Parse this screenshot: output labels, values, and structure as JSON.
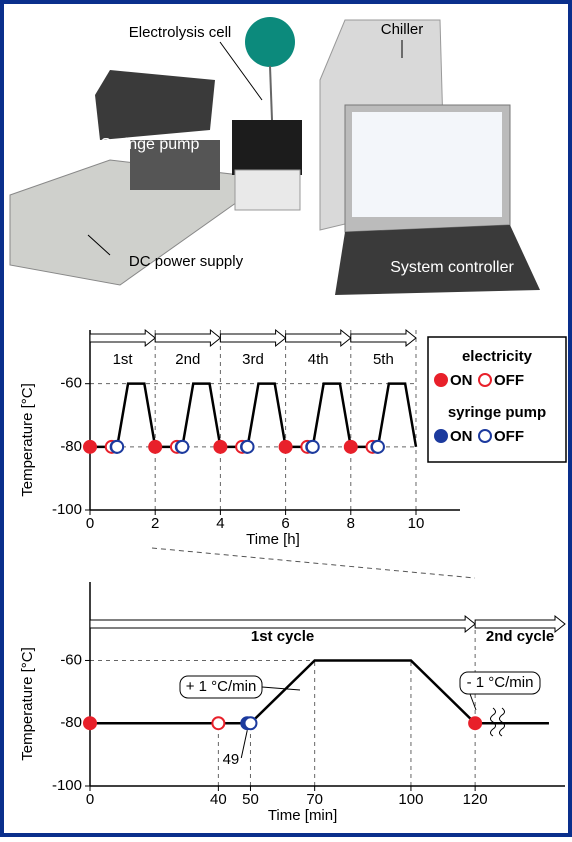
{
  "photo": {
    "labels": [
      "Electrolysis cell",
      "Chiller",
      "Syringe pump",
      "DC power supply",
      "System controller"
    ]
  },
  "chart_data": [
    {
      "type": "line",
      "ylabel": "Temperature [°C]",
      "xlabel": "Time [h]",
      "x": [
        0,
        0.833,
        1.167,
        1.667,
        2,
        2.833,
        3.167,
        3.667,
        4,
        4.833,
        5.167,
        5.667,
        6,
        6.833,
        7.167,
        7.667,
        8,
        8.833,
        9.167,
        9.667,
        10
      ],
      "series": [
        {
          "color": "#000000",
          "values": [
            -80,
            -80,
            -60,
            -60,
            -80,
            -80,
            -60,
            -60,
            -80,
            -80,
            -60,
            -60,
            -80,
            -80,
            -60,
            -60,
            -80,
            -80,
            -60,
            -60,
            -80
          ]
        }
      ],
      "xlim": [
        0,
        11.35
      ],
      "ylim": [
        -100,
        -43
      ],
      "xticks": [
        0,
        2,
        4,
        6,
        8,
        10
      ],
      "yticks": [
        -100,
        -80,
        -60
      ],
      "grid": true,
      "cycles": [
        {
          "label": "1st",
          "x": [
            0,
            2
          ]
        },
        {
          "label": "2nd",
          "x": [
            2,
            4
          ]
        },
        {
          "label": "3rd",
          "x": [
            4,
            6
          ]
        },
        {
          "label": "4th",
          "x": [
            6,
            8
          ]
        },
        {
          "label": "5th",
          "x": [
            8,
            10
          ]
        }
      ],
      "markers": [
        {
          "color": "#e8202a",
          "filled": true,
          "x": [
            0,
            2,
            4,
            6,
            8
          ],
          "values": [
            -80,
            -80,
            -80,
            -80,
            -80
          ]
        },
        {
          "color": "#e8202a",
          "filled": false,
          "x": [
            0.667,
            2.667,
            4.667,
            6.667,
            8.667
          ],
          "values": [
            -80,
            -80,
            -80,
            -80,
            -80
          ]
        },
        {
          "color": "#1c3a9e",
          "filled": true,
          "x": [
            0.817,
            2.817,
            4.817,
            6.817,
            8.817
          ],
          "values": [
            -80,
            -80,
            -80,
            -80,
            -80
          ]
        },
        {
          "color": "#1c3a9e",
          "filled": false,
          "x": [
            0.833,
            2.833,
            4.833,
            6.833,
            8.833
          ],
          "values": [
            -80,
            -80,
            -80,
            -80,
            -80
          ]
        }
      ],
      "legend": [
        {
          "title": "electricity",
          "items": [
            "ON",
            "OFF"
          ]
        },
        {
          "title": "syringe pump",
          "items": [
            "ON",
            "OFF"
          ]
        }
      ]
    },
    {
      "type": "line",
      "ylabel": "Temperature [°C]",
      "xlabel": "Time [min]",
      "x": [
        0,
        50,
        70,
        100,
        120,
        143
      ],
      "series": [
        {
          "color": "#000000",
          "values": [
            -80,
            -80,
            -60,
            -60,
            -80,
            -80
          ]
        }
      ],
      "xlim": [
        0,
        148
      ],
      "ylim": [
        -100,
        -35
      ],
      "xticks": [
        0,
        40,
        50,
        70,
        100,
        120
      ],
      "yticks": [
        -100,
        -80,
        -60
      ],
      "grid": false,
      "cycles": [
        {
          "label": "1st cycle",
          "x": [
            0,
            120
          ]
        },
        {
          "label": "2nd cycle",
          "x": [
            120,
            148
          ]
        }
      ],
      "markers": [
        {
          "color": "#e8202a",
          "filled": true,
          "x": [
            0,
            120
          ],
          "values": [
            -80,
            -80
          ]
        },
        {
          "color": "#e8202a",
          "filled": false,
          "x": [
            40
          ],
          "values": [
            -80
          ]
        },
        {
          "color": "#1c3a9e",
          "filled": true,
          "x": [
            49
          ],
          "values": [
            -80
          ]
        },
        {
          "color": "#1c3a9e",
          "filled": false,
          "x": [
            50
          ],
          "values": [
            -80
          ]
        }
      ],
      "annotations": [
        "+ 1 °C/min",
        "- 1 °C/min"
      ],
      "marked_x": [
        49
      ]
    }
  ]
}
